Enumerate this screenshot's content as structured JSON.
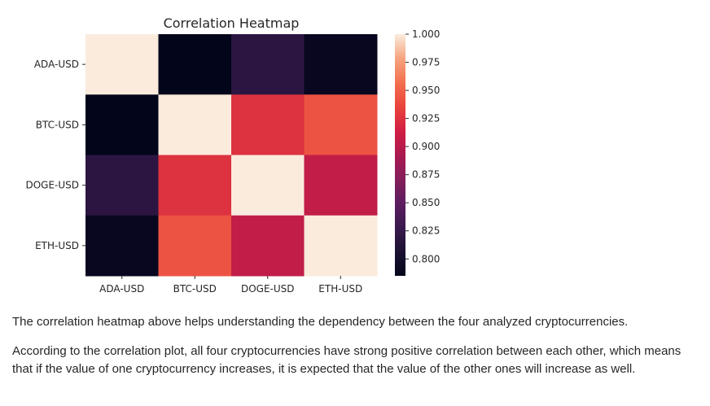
{
  "chart_data": {
    "type": "heatmap",
    "title": "Correlation Heatmap",
    "xlabel": "",
    "ylabel": "",
    "categories_x": [
      "ADA-USD",
      "BTC-USD",
      "DOGE-USD",
      "ETH-USD"
    ],
    "categories_y": [
      "ADA-USD",
      "BTC-USD",
      "DOGE-USD",
      "ETH-USD"
    ],
    "values": [
      [
        1.0,
        0.785,
        0.818,
        0.789
      ],
      [
        0.785,
        1.0,
        0.925,
        0.943
      ],
      [
        0.818,
        0.925,
        1.0,
        0.905
      ],
      [
        0.789,
        0.943,
        0.905,
        1.0
      ]
    ],
    "colorbar": {
      "vmin": 0.785,
      "vmax": 1.0,
      "ticks": [
        1.0,
        0.975,
        0.95,
        0.925,
        0.9,
        0.875,
        0.85,
        0.825,
        0.8
      ],
      "tick_labels": [
        "1.000",
        "0.975",
        "0.950",
        "0.925",
        "0.900",
        "0.875",
        "0.850",
        "0.825",
        "0.800"
      ],
      "colormap": "rocket"
    }
  },
  "text": {
    "paragraph1": "The correlation heatmap above helps understanding the dependency between the four analyzed cryptocurrencies.",
    "paragraph2": "According to the correlation plot, all four cryptocurrencies have strong positive correlation between each other, which means that if the value of one cryptocurrency increases, it is expected that the value of the other ones will increase as well."
  }
}
